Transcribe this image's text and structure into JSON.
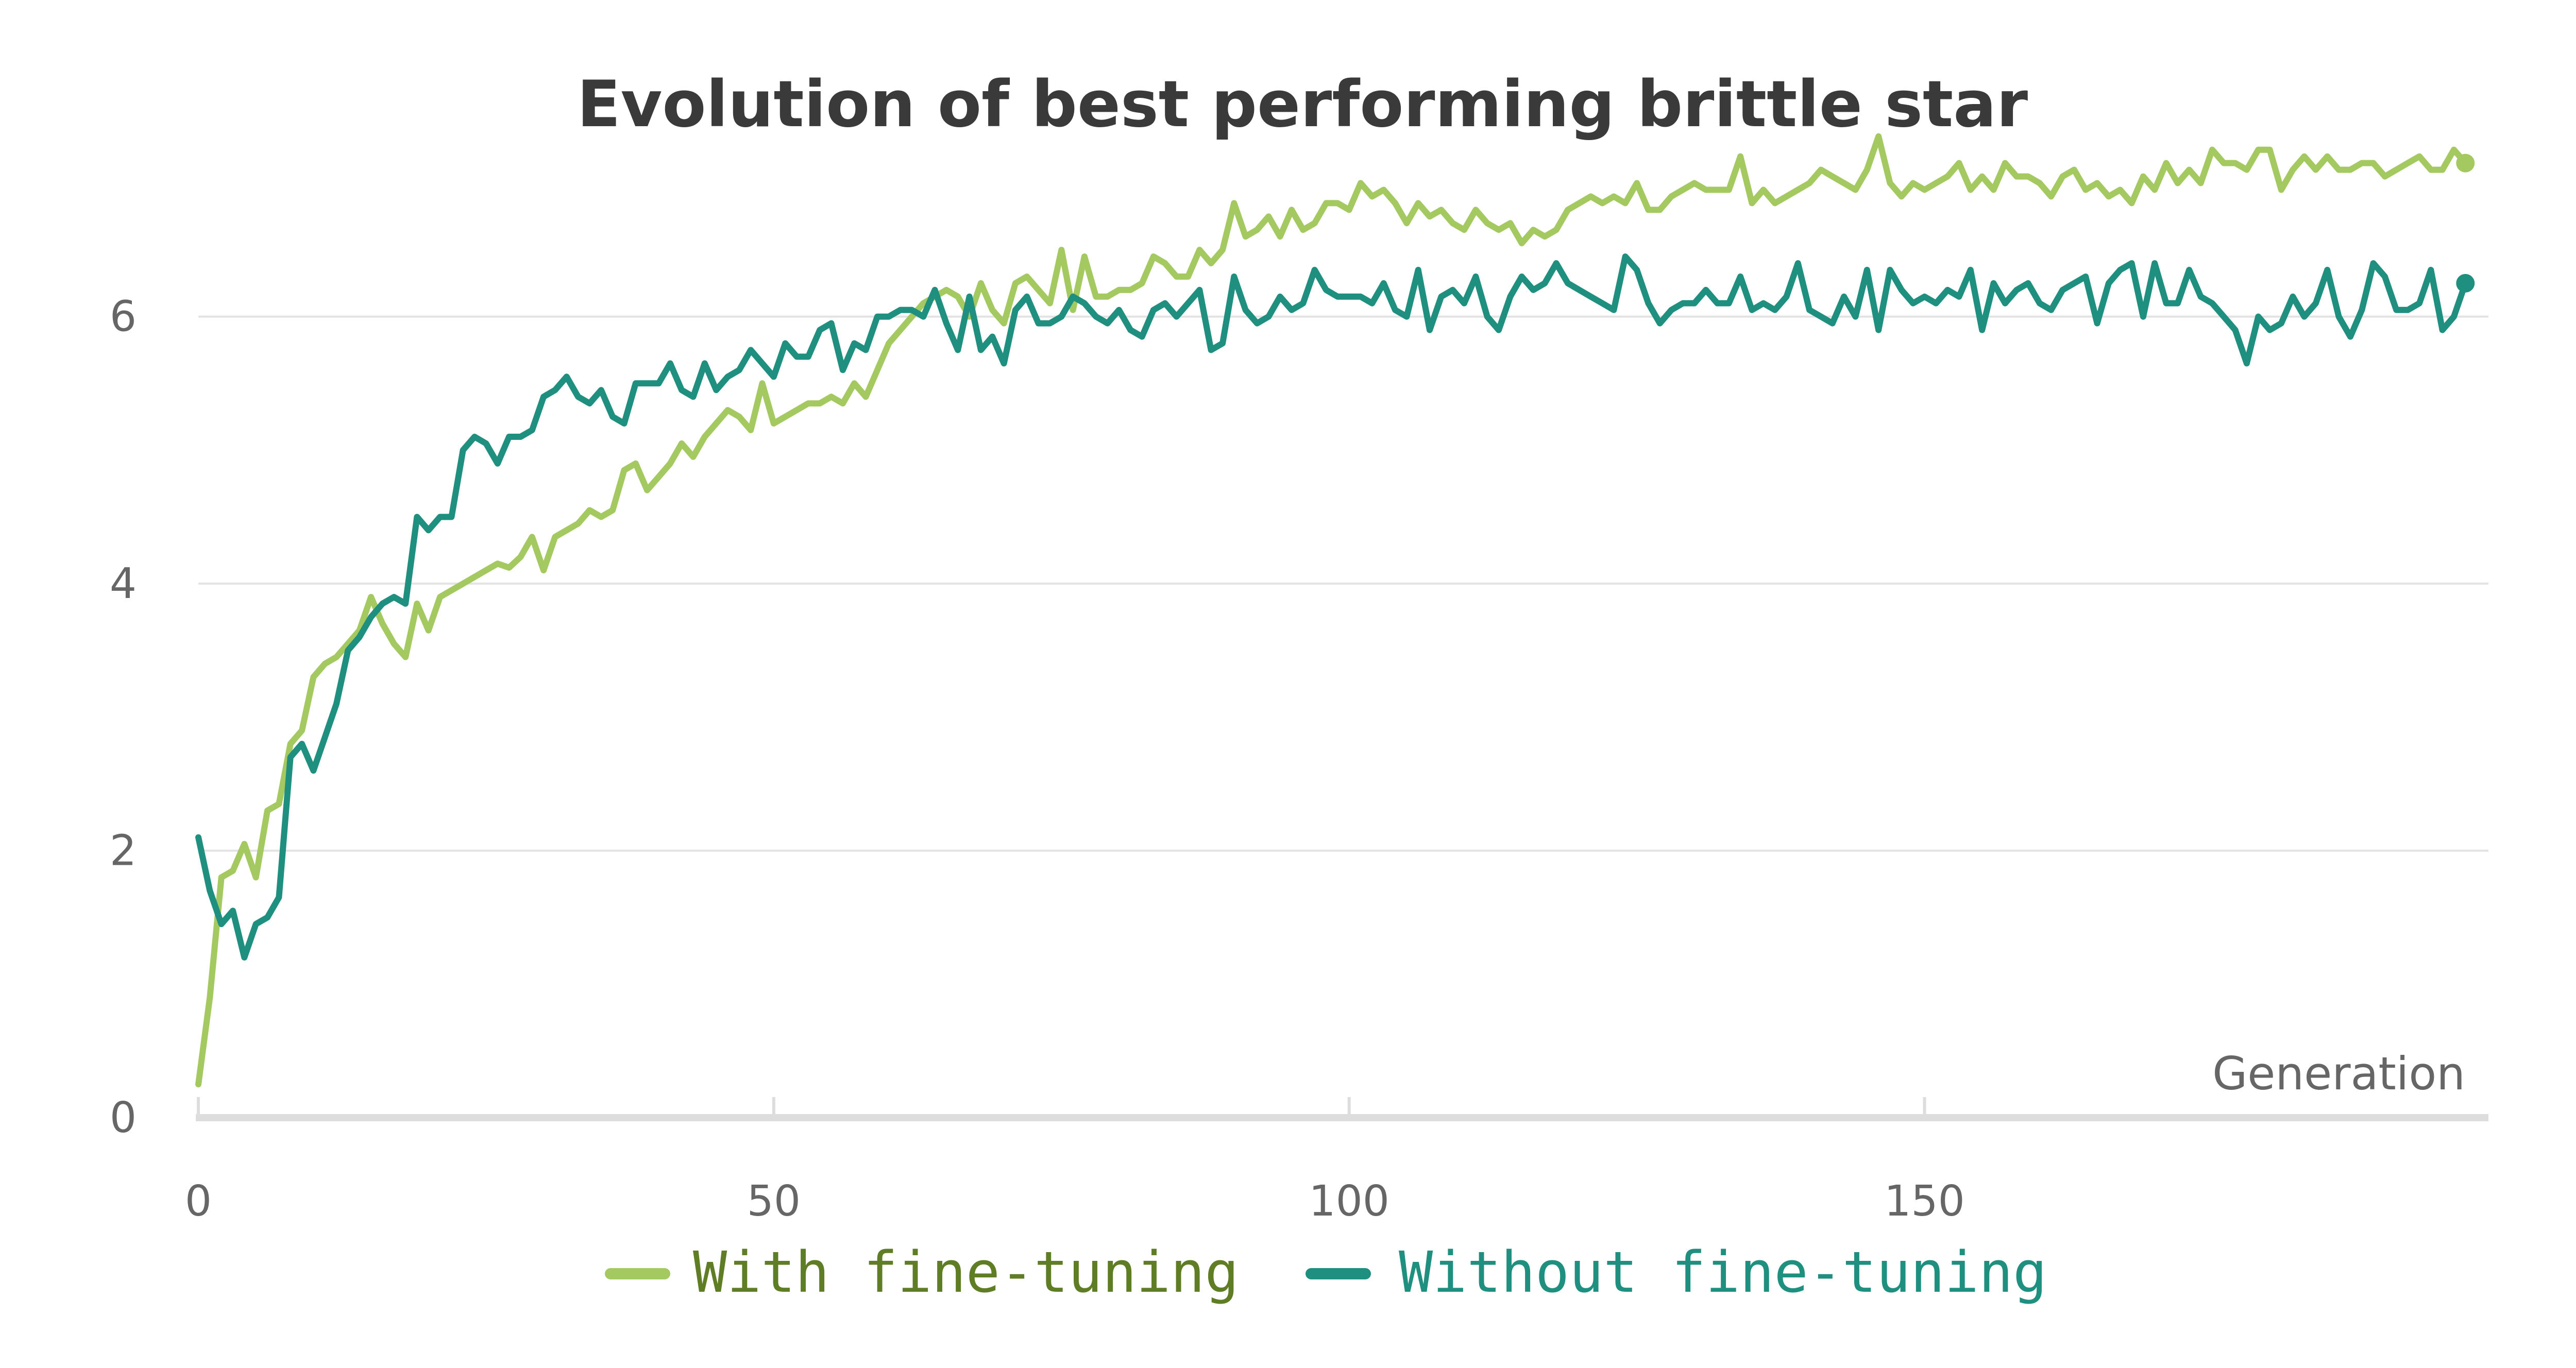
{
  "chart_data": {
    "type": "line",
    "title": "Evolution of best performing brittle star",
    "xlabel": "Generation",
    "ylabel": "",
    "xlim": [
      0,
      199
    ],
    "ylim": [
      0,
      7.6
    ],
    "x_ticks": [
      0,
      50,
      100,
      150
    ],
    "y_ticks": [
      0,
      2,
      4,
      6
    ],
    "grid": "horizontal",
    "legend_position": "bottom",
    "series": [
      {
        "name": "With fine-tuning",
        "color": "#a3c960",
        "text_color": "#5f7d24",
        "values": [
          0.25,
          0.9,
          1.8,
          1.85,
          2.05,
          1.8,
          2.3,
          2.35,
          2.8,
          2.9,
          3.3,
          3.4,
          3.45,
          3.55,
          3.65,
          3.9,
          3.7,
          3.55,
          3.45,
          3.85,
          3.65,
          3.9,
          3.95,
          4.0,
          4.05,
          4.1,
          4.15,
          4.12,
          4.2,
          4.35,
          4.1,
          4.35,
          4.4,
          4.45,
          4.55,
          4.5,
          4.55,
          4.85,
          4.9,
          4.7,
          4.8,
          4.9,
          5.05,
          4.95,
          5.1,
          5.2,
          5.3,
          5.25,
          5.15,
          5.5,
          5.2,
          5.25,
          5.3,
          5.35,
          5.35,
          5.4,
          5.35,
          5.5,
          5.4,
          5.6,
          5.8,
          5.9,
          6.0,
          6.1,
          6.15,
          6.2,
          6.15,
          6.0,
          6.25,
          6.05,
          5.95,
          6.25,
          6.3,
          6.2,
          6.1,
          6.5,
          6.05,
          6.45,
          6.15,
          6.15,
          6.2,
          6.2,
          6.25,
          6.45,
          6.4,
          6.3,
          6.3,
          6.5,
          6.4,
          6.5,
          6.85,
          6.6,
          6.65,
          6.75,
          6.6,
          6.8,
          6.65,
          6.7,
          6.85,
          6.85,
          6.8,
          7.0,
          6.9,
          6.95,
          6.85,
          6.7,
          6.85,
          6.75,
          6.8,
          6.7,
          6.65,
          6.8,
          6.7,
          6.65,
          6.7,
          6.55,
          6.65,
          6.6,
          6.65,
          6.8,
          6.85,
          6.9,
          6.85,
          6.9,
          6.85,
          7.0,
          6.8,
          6.8,
          6.9,
          6.95,
          7.0,
          6.95,
          6.95,
          6.95,
          7.2,
          6.85,
          6.95,
          6.85,
          6.9,
          6.95,
          7.0,
          7.1,
          7.05,
          7.0,
          6.95,
          7.1,
          7.35,
          7.0,
          6.9,
          7.0,
          6.95,
          7.0,
          7.05,
          7.15,
          6.95,
          7.05,
          6.95,
          7.15,
          7.05,
          7.05,
          7.0,
          6.9,
          7.05,
          7.1,
          6.95,
          7.0,
          6.9,
          6.95,
          6.85,
          7.05,
          6.95,
          7.15,
          7.0,
          7.1,
          7.0,
          7.25,
          7.15,
          7.15,
          7.1,
          7.25,
          7.25,
          6.95,
          7.1,
          7.2,
          7.1,
          7.2,
          7.1,
          7.1,
          7.15,
          7.15,
          7.05,
          7.1,
          7.15,
          7.2,
          7.1,
          7.1,
          7.25,
          7.15
        ]
      },
      {
        "name": "Without fine-tuning",
        "color": "#1f8f7f",
        "text_color": "#1f8f7f",
        "values": [
          2.1,
          1.7,
          1.45,
          1.55,
          1.2,
          1.45,
          1.5,
          1.65,
          2.7,
          2.8,
          2.6,
          2.85,
          3.1,
          3.5,
          3.6,
          3.75,
          3.85,
          3.9,
          3.85,
          4.5,
          4.4,
          4.5,
          4.5,
          5.0,
          5.1,
          5.05,
          4.9,
          5.1,
          5.1,
          5.15,
          5.4,
          5.45,
          5.55,
          5.4,
          5.35,
          5.45,
          5.25,
          5.2,
          5.5,
          5.5,
          5.5,
          5.65,
          5.45,
          5.4,
          5.65,
          5.45,
          5.55,
          5.6,
          5.75,
          5.65,
          5.55,
          5.8,
          5.7,
          5.7,
          5.9,
          5.95,
          5.6,
          5.8,
          5.75,
          6.0,
          6.0,
          6.05,
          6.05,
          6.0,
          6.2,
          5.95,
          5.75,
          6.15,
          5.75,
          5.85,
          5.65,
          6.05,
          6.15,
          5.95,
          5.95,
          6.0,
          6.15,
          6.1,
          6.0,
          5.95,
          6.05,
          5.9,
          5.85,
          6.05,
          6.1,
          6.0,
          6.1,
          6.2,
          5.75,
          5.8,
          6.3,
          6.05,
          5.95,
          6.0,
          6.15,
          6.05,
          6.1,
          6.35,
          6.2,
          6.15,
          6.15,
          6.15,
          6.1,
          6.25,
          6.05,
          6.0,
          6.35,
          5.9,
          6.15,
          6.2,
          6.1,
          6.3,
          6.0,
          5.9,
          6.15,
          6.3,
          6.2,
          6.25,
          6.4,
          6.25,
          6.2,
          6.15,
          6.1,
          6.05,
          6.45,
          6.35,
          6.1,
          5.95,
          6.05,
          6.1,
          6.1,
          6.2,
          6.1,
          6.1,
          6.3,
          6.05,
          6.1,
          6.05,
          6.15,
          6.4,
          6.05,
          6.0,
          5.95,
          6.15,
          6.0,
          6.35,
          5.9,
          6.35,
          6.2,
          6.1,
          6.15,
          6.1,
          6.2,
          6.15,
          6.35,
          5.9,
          6.25,
          6.1,
          6.2,
          6.25,
          6.1,
          6.05,
          6.2,
          6.25,
          6.3,
          5.95,
          6.25,
          6.35,
          6.4,
          6.0,
          6.4,
          6.1,
          6.1,
          6.35,
          6.15,
          6.1,
          6.0,
          5.9,
          5.65,
          6.0,
          5.9,
          5.95,
          6.15,
          6.0,
          6.1,
          6.35,
          6.0,
          5.85,
          6.05,
          6.4,
          6.3,
          6.05,
          6.05,
          6.1,
          6.35,
          5.9,
          6.0,
          6.25
        ]
      }
    ]
  }
}
